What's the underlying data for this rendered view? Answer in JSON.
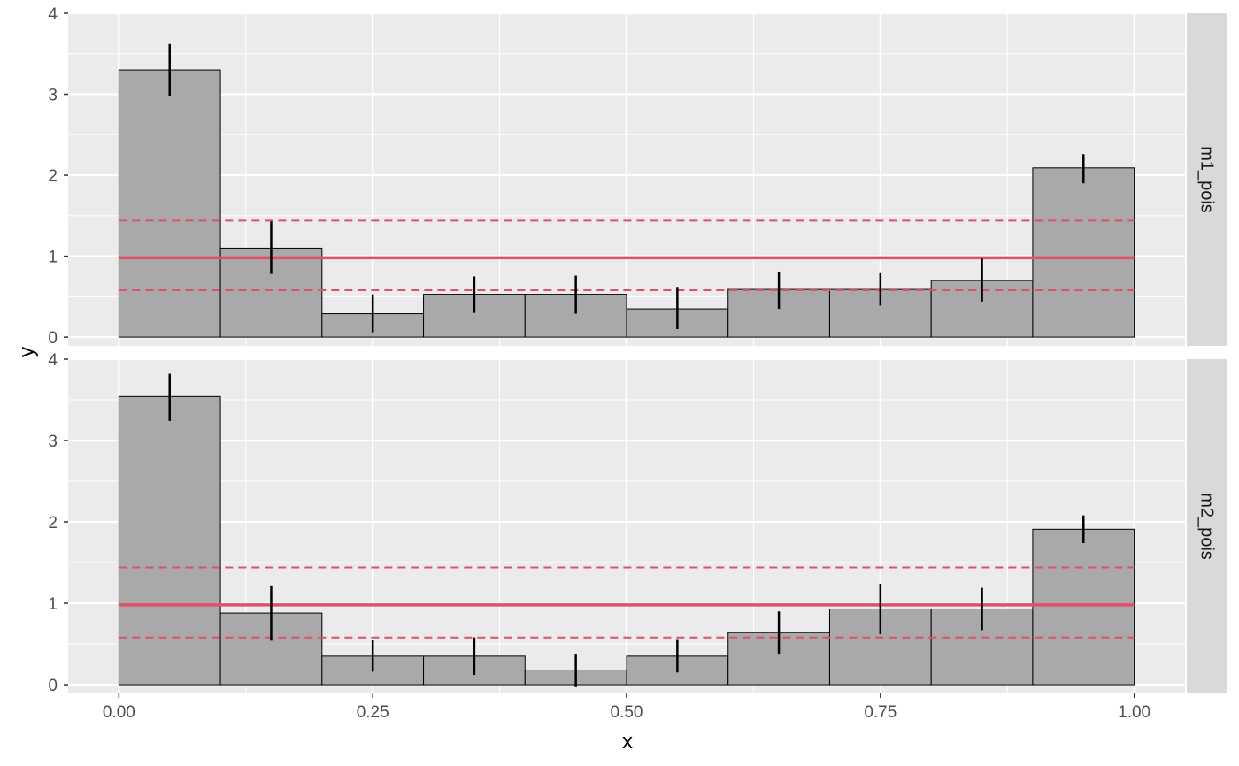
{
  "chart_data": {
    "type": "bar",
    "xlabel": "x",
    "ylabel": "y",
    "xlim": [
      0,
      1
    ],
    "ylim": [
      0,
      4
    ],
    "x_ticks": [
      {
        "value": 0,
        "label": "0.00"
      },
      {
        "value": 0.25,
        "label": "0.25"
      },
      {
        "value": 0.5,
        "label": "0.50"
      },
      {
        "value": 0.75,
        "label": "0.75"
      },
      {
        "value": 1,
        "label": "1.00"
      }
    ],
    "y_ticks": [
      {
        "value": 0,
        "label": "0"
      },
      {
        "value": 1,
        "label": "1"
      },
      {
        "value": 2,
        "label": "2"
      },
      {
        "value": 3,
        "label": "3"
      },
      {
        "value": 4,
        "label": "4"
      }
    ],
    "bin_edges": [
      0,
      0.1,
      0.2,
      0.3,
      0.4,
      0.5,
      0.6,
      0.7,
      0.8,
      0.9,
      1.0
    ],
    "reference": {
      "center": 0.98,
      "lower": 0.58,
      "upper": 1.44
    },
    "colors": {
      "panel_bg": "#ebebeb",
      "grid": "#ffffff",
      "bar_fill": "#a9a9a9",
      "bar_stroke": "#000000",
      "errorbar": "#000000",
      "reference_line": "#e05068",
      "strip_bg": "#d9d9d9"
    },
    "grid": true,
    "panels": [
      {
        "strip": "m1_pois",
        "values": [
          3.3,
          1.1,
          0.29,
          0.53,
          0.53,
          0.35,
          0.59,
          0.59,
          0.7,
          2.09
        ],
        "err_low": [
          2.98,
          0.78,
          0.06,
          0.3,
          0.29,
          0.1,
          0.35,
          0.39,
          0.44,
          1.9
        ],
        "err_high": [
          3.62,
          1.43,
          0.53,
          0.75,
          0.76,
          0.61,
          0.81,
          0.79,
          0.97,
          2.26
        ]
      },
      {
        "strip": "m2_pois",
        "values": [
          3.54,
          0.88,
          0.35,
          0.35,
          0.18,
          0.35,
          0.64,
          0.93,
          0.93,
          1.91
        ],
        "err_low": [
          3.24,
          0.54,
          0.16,
          0.12,
          -0.03,
          0.15,
          0.38,
          0.62,
          0.67,
          1.74
        ],
        "err_high": [
          3.82,
          1.22,
          0.55,
          0.58,
          0.38,
          0.56,
          0.9,
          1.24,
          1.19,
          2.08
        ]
      }
    ]
  }
}
